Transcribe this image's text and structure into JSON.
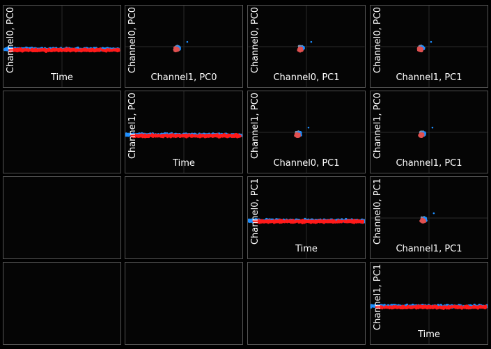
{
  "colors": {
    "background": "#000000",
    "panel_border": "#555555",
    "cluster_a": "#1e8fff",
    "cluster_b": "#ff1a1a",
    "cluster_b_blend": "#e05050",
    "outlier": "#7a96b4"
  },
  "panels": [
    {
      "row": 0,
      "col": 0,
      "xlabel": "Time",
      "ylabel": "Channel0, PC0",
      "kind": "time"
    },
    {
      "row": 0,
      "col": 1,
      "xlabel": "Channel1, PC0",
      "ylabel": "Channel0, PC0",
      "kind": "blob"
    },
    {
      "row": 0,
      "col": 2,
      "xlabel": "Channel0, PC1",
      "ylabel": "Channel0, PC0",
      "kind": "blob"
    },
    {
      "row": 0,
      "col": 3,
      "xlabel": "Channel1, PC1",
      "ylabel": "Channel0, PC0",
      "kind": "blob"
    },
    {
      "row": 1,
      "col": 0,
      "xlabel": "",
      "ylabel": "",
      "kind": "empty"
    },
    {
      "row": 1,
      "col": 1,
      "xlabel": "Time",
      "ylabel": "Channel1, PC0",
      "kind": "time"
    },
    {
      "row": 1,
      "col": 2,
      "xlabel": "Channel0, PC1",
      "ylabel": "Channel1, PC0",
      "kind": "blob"
    },
    {
      "row": 1,
      "col": 3,
      "xlabel": "Channel1, PC1",
      "ylabel": "Channel1, PC0",
      "kind": "blob"
    },
    {
      "row": 2,
      "col": 0,
      "xlabel": "",
      "ylabel": "",
      "kind": "empty"
    },
    {
      "row": 2,
      "col": 1,
      "xlabel": "",
      "ylabel": "",
      "kind": "empty"
    },
    {
      "row": 2,
      "col": 2,
      "xlabel": "Time",
      "ylabel": "Channel0, PC1",
      "kind": "time"
    },
    {
      "row": 2,
      "col": 3,
      "xlabel": "Channel1, PC1",
      "ylabel": "Channel0, PC1",
      "kind": "blob"
    },
    {
      "row": 3,
      "col": 0,
      "xlabel": "",
      "ylabel": "",
      "kind": "empty"
    },
    {
      "row": 3,
      "col": 1,
      "xlabel": "",
      "ylabel": "",
      "kind": "empty"
    },
    {
      "row": 3,
      "col": 2,
      "xlabel": "",
      "ylabel": "",
      "kind": "empty"
    },
    {
      "row": 3,
      "col": 3,
      "xlabel": "Time",
      "ylabel": "Channel1, PC1",
      "kind": "time"
    }
  ]
}
